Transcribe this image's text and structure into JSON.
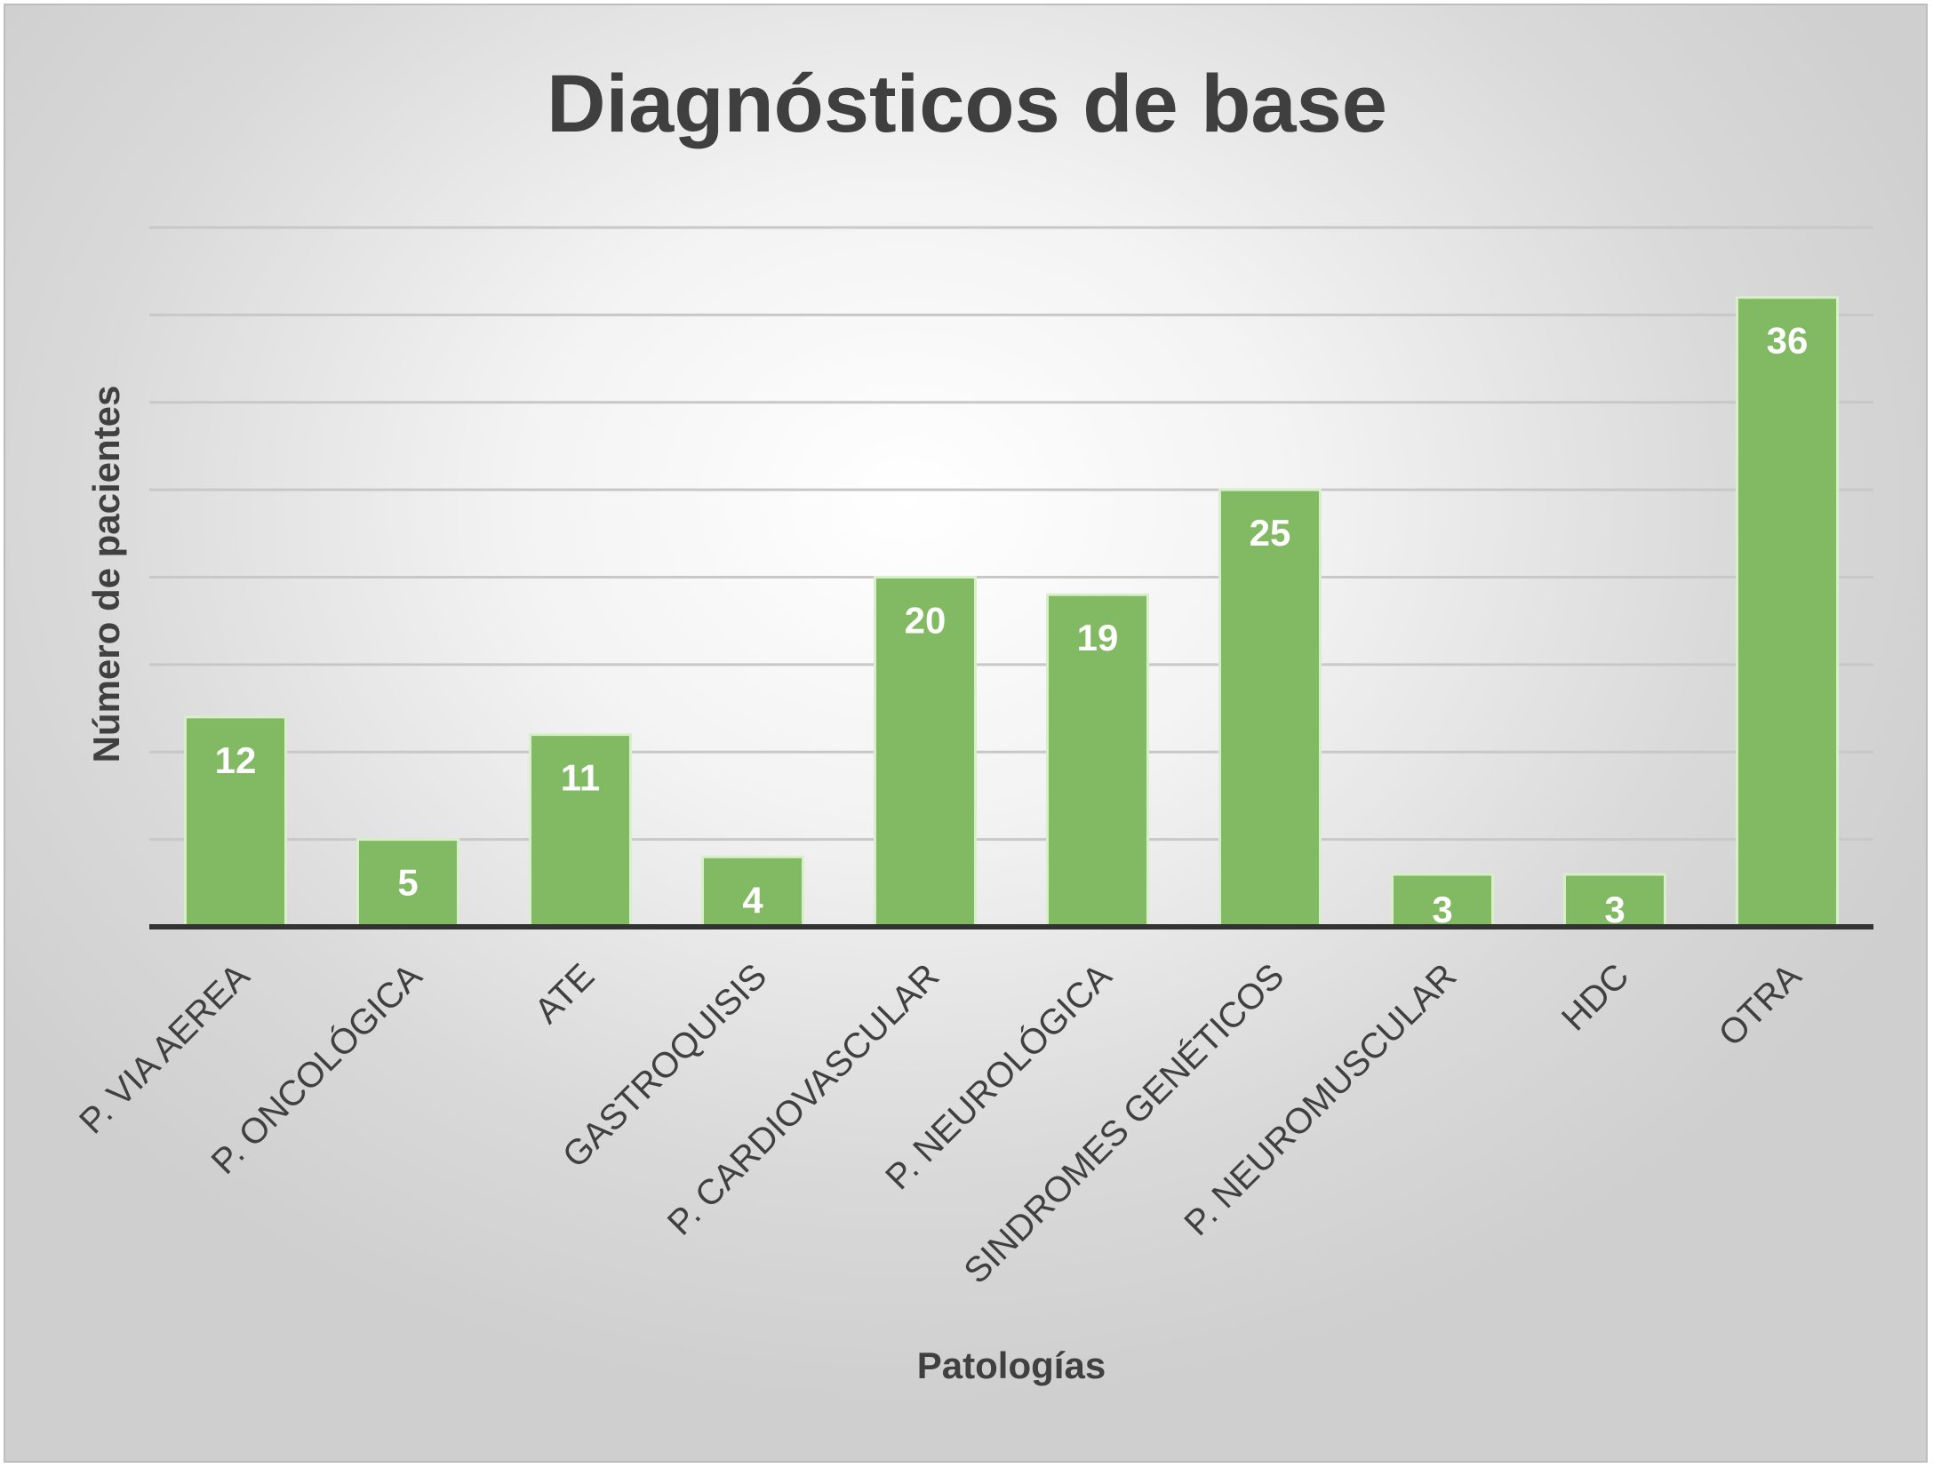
{
  "chart_data": {
    "type": "bar",
    "title": "Diagnósticos de base",
    "xlabel": "Patologías",
    "ylabel": "Número de pacientes",
    "categories": [
      "P. VIA AEREA",
      "P. ONCOLÓGICA",
      "ATE",
      "GASTROQUISIS",
      "P. CARDIOVASCULAR",
      "P. NEUROLÓGICA",
      "SINDROMES GENÉTICOS",
      "P. NEUROMUSCULAR",
      "HDC",
      "OTRA"
    ],
    "values": [
      12,
      5,
      11,
      4,
      20,
      19,
      25,
      3,
      3,
      36
    ],
    "data_labels": [
      "12",
      "5",
      "11",
      "4",
      "20",
      "19",
      "25",
      "3",
      "3",
      "36"
    ],
    "ylim": [
      0,
      40
    ],
    "grid": true,
    "y_tick_labels_shown": false,
    "bar_color": "#82b963",
    "bar_border_color": "#d9efc9"
  }
}
